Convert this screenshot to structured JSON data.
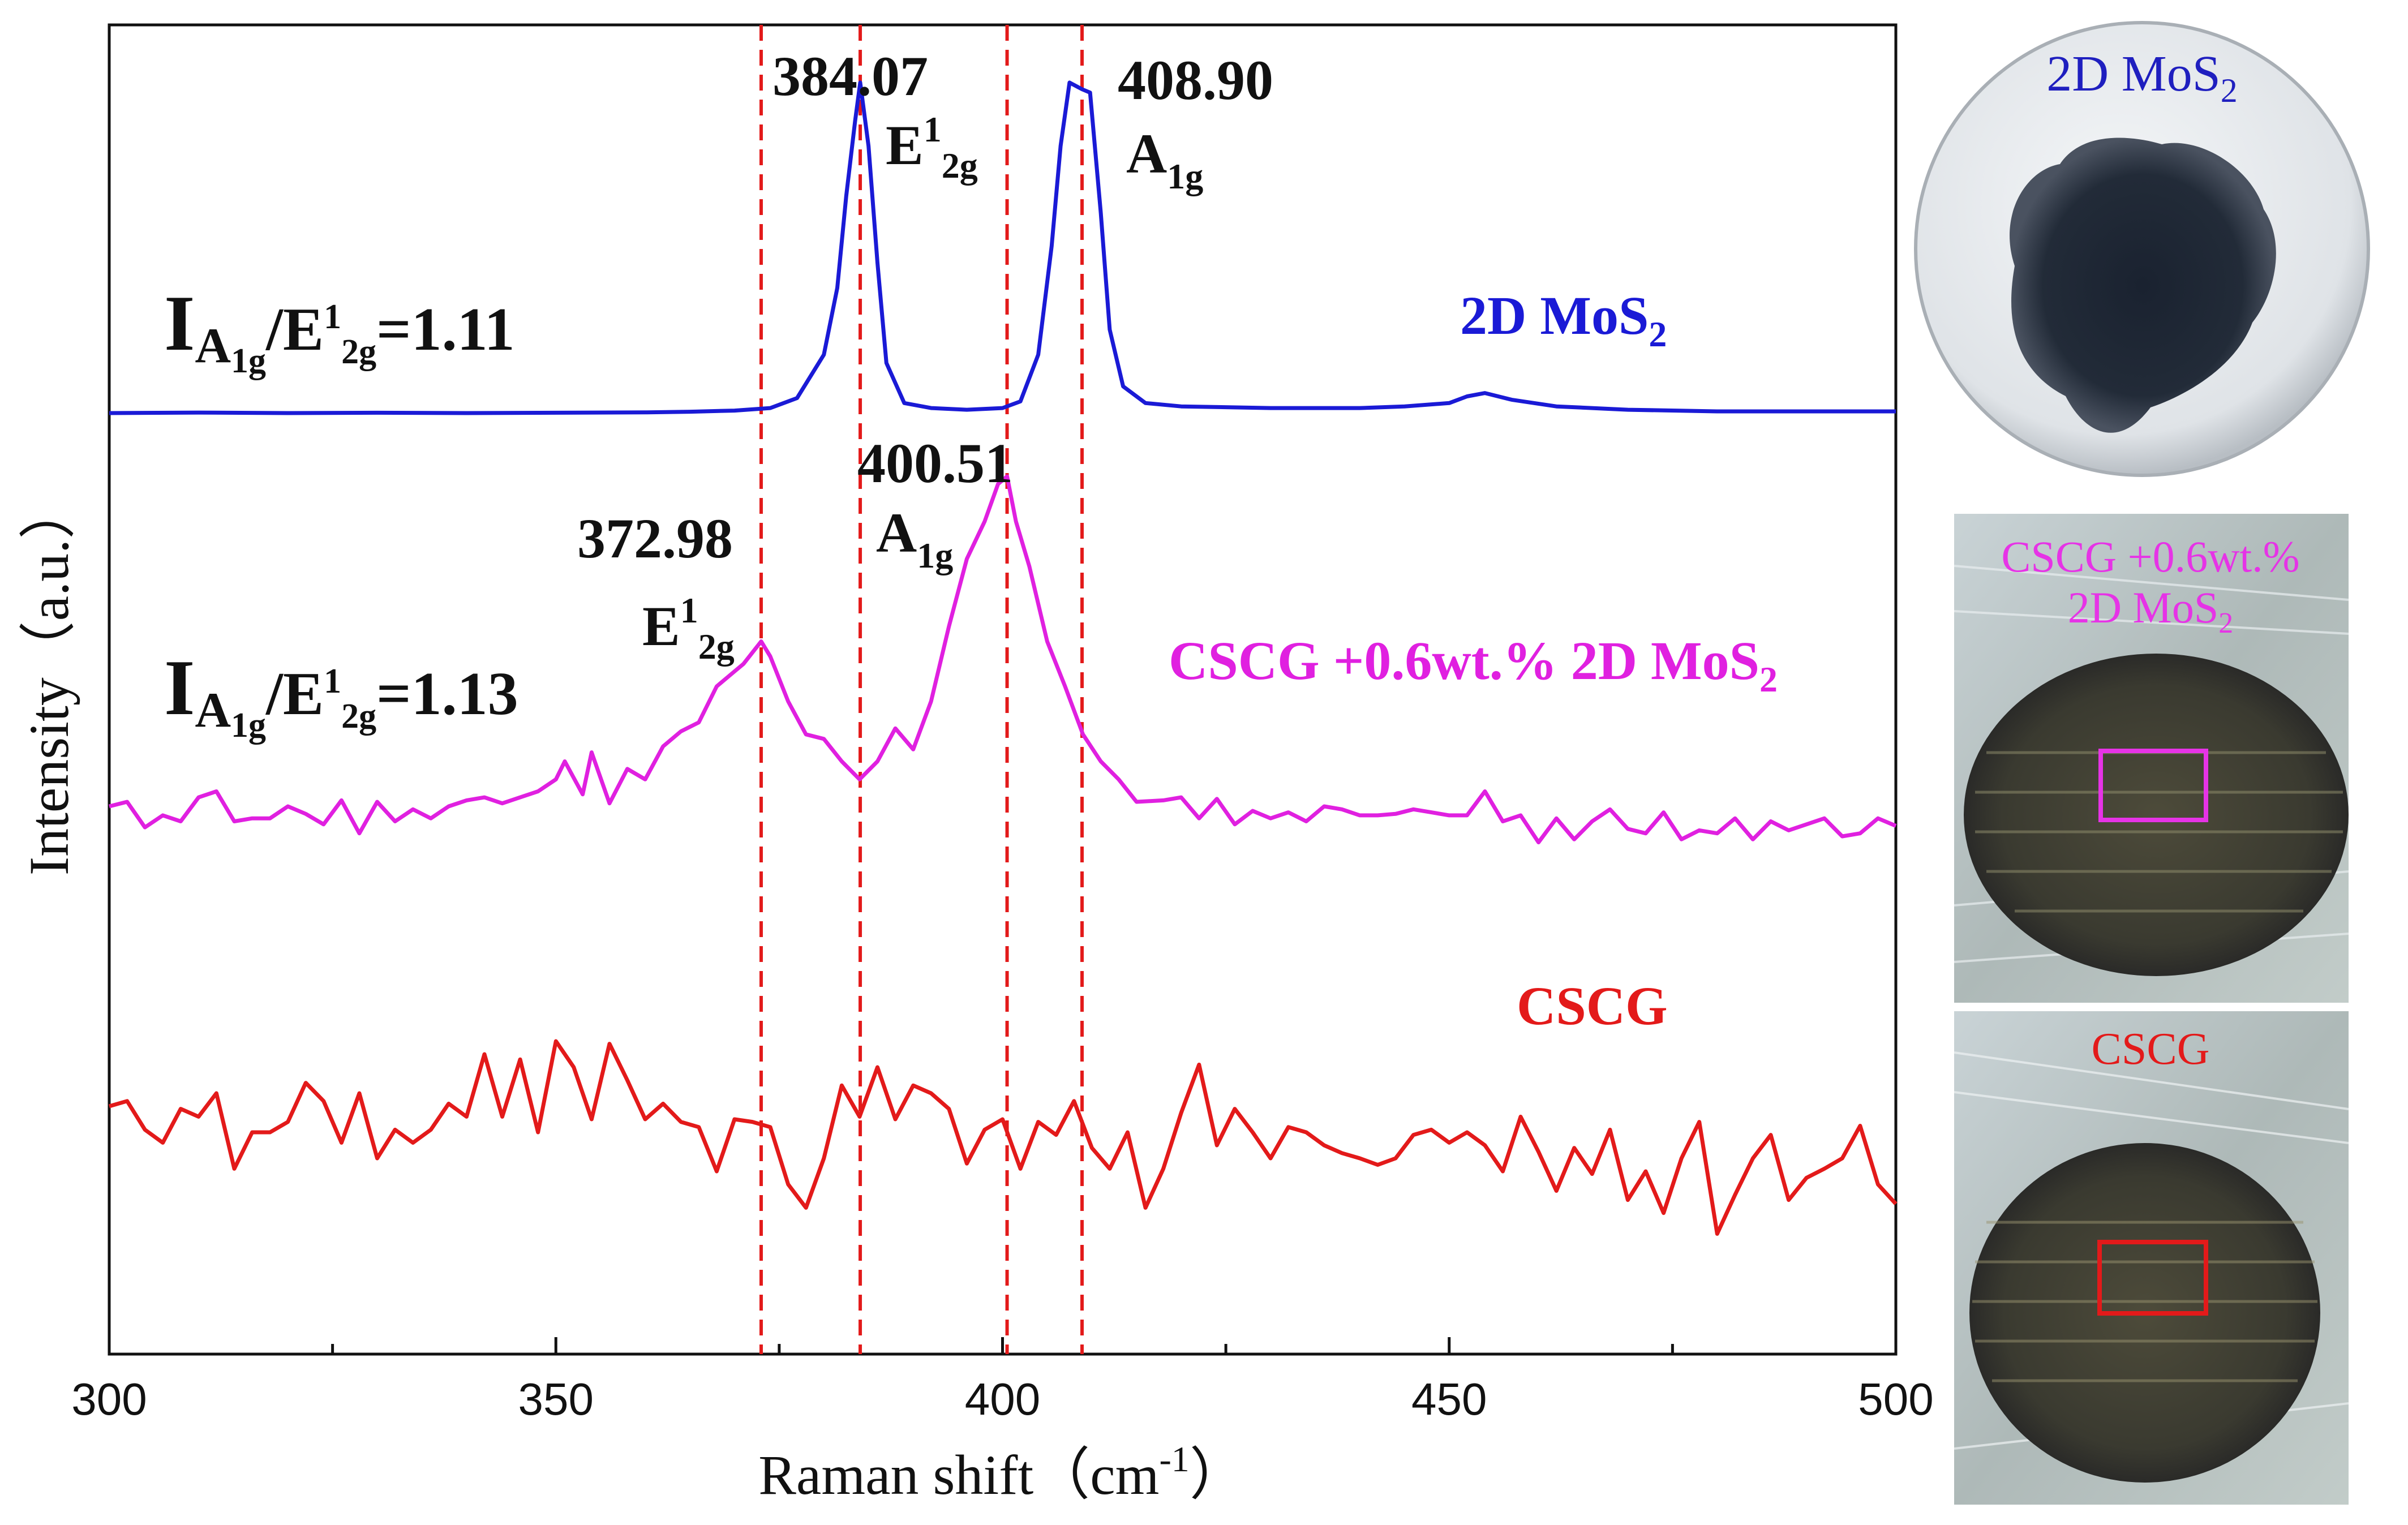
{
  "chart_data": {
    "type": "line",
    "xlabel": "Raman shift（cm",
    "xlabel_unit_sup": "-1",
    "xlabel_close": "）",
    "ylabel": "Intensity（a.u.）",
    "xlim": [
      300,
      500
    ],
    "x_ticks": [
      "300",
      "350",
      "400",
      "450",
      "500"
    ],
    "ref_lines": [
      372.98,
      384.07,
      400.51,
      408.9
    ],
    "series": [
      {
        "name": "2D MoS",
        "name_sub": "2",
        "color": "#1a1ad6",
        "ratio": {
          "main": "I",
          "sub1": "A",
          "sub2": "1g",
          "sep": "/E",
          "sup": "1",
          "sub3": "2g",
          "value": "=1.11"
        },
        "peaks": [
          {
            "x": 384.07,
            "label": "384.07",
            "mode": {
              "base": "E",
              "sup": "1",
              "sub": "2g"
            }
          },
          {
            "x": 408.9,
            "label": "408.90",
            "mode": {
              "base": "A",
              "sup": "",
              "sub": "1g"
            }
          }
        ],
        "points": [
          [
            300,
            0
          ],
          [
            310,
            0.3
          ],
          [
            320,
            0
          ],
          [
            330,
            0.2
          ],
          [
            340,
            0
          ],
          [
            350,
            0.2
          ],
          [
            360,
            0.4
          ],
          [
            365,
            0.8
          ],
          [
            370,
            1.5
          ],
          [
            374,
            3
          ],
          [
            377,
            9
          ],
          [
            380,
            35
          ],
          [
            381.5,
            75
          ],
          [
            382.5,
            130
          ],
          [
            383.5,
            175
          ],
          [
            384.07,
            198
          ],
          [
            385,
            160
          ],
          [
            386,
            90
          ],
          [
            387,
            30
          ],
          [
            389,
            6
          ],
          [
            392,
            3
          ],
          [
            396,
            2
          ],
          [
            400,
            3
          ],
          [
            402,
            7
          ],
          [
            404,
            35
          ],
          [
            405.5,
            100
          ],
          [
            406.5,
            160
          ],
          [
            407.5,
            198
          ],
          [
            408.9,
            194
          ],
          [
            409.8,
            192
          ],
          [
            411,
            120
          ],
          [
            412,
            50
          ],
          [
            413.5,
            16
          ],
          [
            416,
            6
          ],
          [
            420,
            4
          ],
          [
            430,
            3
          ],
          [
            440,
            3
          ],
          [
            445,
            4
          ],
          [
            450,
            6
          ],
          [
            452,
            10
          ],
          [
            454,
            12
          ],
          [
            457,
            8
          ],
          [
            462,
            4
          ],
          [
            470,
            2
          ],
          [
            480,
            1
          ],
          [
            490,
            1
          ],
          [
            500,
            1
          ]
        ]
      },
      {
        "name": "CSCG +0.6wt.% 2D MoS",
        "name_sub": "2",
        "color": "#e020e0",
        "ratio": {
          "main": "I",
          "sub1": "A",
          "sub2": "1g",
          "sep": "/E",
          "sup": "1",
          "sub3": "2g",
          "value": "=1.13"
        },
        "peaks": [
          {
            "x": 372.98,
            "label": "372.98",
            "mode": {
              "base": "E",
              "sup": "1",
              "sub": "2g"
            }
          },
          {
            "x": 400.51,
            "label": "400.51",
            "mode": {
              "base": "A",
              "sup": "",
              "sub": "1g"
            }
          }
        ],
        "points": [
          [
            300,
            0
          ],
          [
            302,
            3
          ],
          [
            304,
            -14
          ],
          [
            306,
            -6
          ],
          [
            308,
            -10
          ],
          [
            310,
            6
          ],
          [
            312,
            10
          ],
          [
            314,
            -10
          ],
          [
            316,
            -8
          ],
          [
            318,
            -8
          ],
          [
            320,
            0
          ],
          [
            322,
            -5
          ],
          [
            324,
            -12
          ],
          [
            326,
            4
          ],
          [
            328,
            -18
          ],
          [
            330,
            3
          ],
          [
            332,
            -10
          ],
          [
            334,
            -2
          ],
          [
            336,
            -8
          ],
          [
            338,
            0
          ],
          [
            340,
            4
          ],
          [
            342,
            6
          ],
          [
            344,
            2
          ],
          [
            346,
            6
          ],
          [
            348,
            10
          ],
          [
            350,
            18
          ],
          [
            351,
            30
          ],
          [
            353,
            8
          ],
          [
            354,
            36
          ],
          [
            356,
            2
          ],
          [
            358,
            25
          ],
          [
            360,
            18
          ],
          [
            362,
            40
          ],
          [
            364,
            50
          ],
          [
            366,
            56
          ],
          [
            368,
            80
          ],
          [
            370,
            90
          ],
          [
            371,
            95
          ],
          [
            372.98,
            110
          ],
          [
            374,
            100
          ],
          [
            376,
            70
          ],
          [
            378,
            48
          ],
          [
            380,
            45
          ],
          [
            382,
            30
          ],
          [
            384,
            18
          ],
          [
            386,
            30
          ],
          [
            388,
            52
          ],
          [
            390,
            38
          ],
          [
            392,
            70
          ],
          [
            394,
            120
          ],
          [
            396,
            165
          ],
          [
            398,
            190
          ],
          [
            399.5,
            215
          ],
          [
            400.51,
            220
          ],
          [
            401.5,
            190
          ],
          [
            403,
            160
          ],
          [
            405,
            110
          ],
          [
            407,
            80
          ],
          [
            409,
            48
          ],
          [
            411,
            30
          ],
          [
            413,
            18
          ],
          [
            415,
            3
          ],
          [
            418,
            4
          ],
          [
            420,
            6
          ],
          [
            422,
            -8
          ],
          [
            424,
            5
          ],
          [
            426,
            -12
          ],
          [
            428,
            -3
          ],
          [
            430,
            -8
          ],
          [
            432,
            -4
          ],
          [
            434,
            -10
          ],
          [
            436,
            0
          ],
          [
            438,
            -2
          ],
          [
            440,
            -6
          ],
          [
            442,
            -6
          ],
          [
            444,
            -5
          ],
          [
            446,
            -2
          ],
          [
            448,
            -4
          ],
          [
            450,
            -6
          ],
          [
            452,
            -6
          ],
          [
            454,
            10
          ],
          [
            456,
            -10
          ],
          [
            458,
            -6
          ],
          [
            460,
            -24
          ],
          [
            462,
            -8
          ],
          [
            464,
            -22
          ],
          [
            466,
            -10
          ],
          [
            468,
            -2
          ],
          [
            470,
            -15
          ],
          [
            472,
            -18
          ],
          [
            474,
            -4
          ],
          [
            476,
            -22
          ],
          [
            478,
            -16
          ],
          [
            480,
            -18
          ],
          [
            482,
            -8
          ],
          [
            484,
            -22
          ],
          [
            486,
            -10
          ],
          [
            488,
            -16
          ],
          [
            490,
            -12
          ],
          [
            492,
            -8
          ],
          [
            494,
            -20
          ],
          [
            496,
            -18
          ],
          [
            498,
            -8
          ],
          [
            500,
            -13
          ]
        ]
      },
      {
        "name": "CSCG",
        "name_sub": "",
        "color": "#e31a1a",
        "ratio": null,
        "peaks": [],
        "points": [
          [
            300,
            0
          ],
          [
            302,
            4
          ],
          [
            304,
            -18
          ],
          [
            306,
            -28
          ],
          [
            308,
            -2
          ],
          [
            310,
            -8
          ],
          [
            312,
            10
          ],
          [
            314,
            -48
          ],
          [
            316,
            -20
          ],
          [
            318,
            -20
          ],
          [
            320,
            -12
          ],
          [
            322,
            18
          ],
          [
            324,
            4
          ],
          [
            326,
            -28
          ],
          [
            328,
            10
          ],
          [
            330,
            -40
          ],
          [
            332,
            -18
          ],
          [
            334,
            -28
          ],
          [
            336,
            -18
          ],
          [
            338,
            2
          ],
          [
            340,
            -8
          ],
          [
            342,
            40
          ],
          [
            344,
            -8
          ],
          [
            346,
            36
          ],
          [
            348,
            -20
          ],
          [
            350,
            50
          ],
          [
            352,
            30
          ],
          [
            354,
            -10
          ],
          [
            356,
            48
          ],
          [
            358,
            20
          ],
          [
            360,
            -10
          ],
          [
            362,
            2
          ],
          [
            364,
            -12
          ],
          [
            366,
            -16
          ],
          [
            368,
            -50
          ],
          [
            370,
            -10
          ],
          [
            372,
            -12
          ],
          [
            374,
            -16
          ],
          [
            376,
            -60
          ],
          [
            378,
            -78
          ],
          [
            380,
            -40
          ],
          [
            382,
            16
          ],
          [
            384,
            -8
          ],
          [
            386,
            30
          ],
          [
            388,
            -10
          ],
          [
            390,
            16
          ],
          [
            392,
            10
          ],
          [
            394,
            -2
          ],
          [
            396,
            -44
          ],
          [
            398,
            -18
          ],
          [
            400,
            -10
          ],
          [
            402,
            -48
          ],
          [
            404,
            -12
          ],
          [
            406,
            -22
          ],
          [
            408,
            4
          ],
          [
            410,
            -32
          ],
          [
            412,
            -48
          ],
          [
            414,
            -20
          ],
          [
            416,
            -78
          ],
          [
            418,
            -48
          ],
          [
            420,
            -5
          ],
          [
            422,
            32
          ],
          [
            424,
            -30
          ],
          [
            426,
            -2
          ],
          [
            428,
            -20
          ],
          [
            430,
            -40
          ],
          [
            432,
            -16
          ],
          [
            434,
            -20
          ],
          [
            436,
            -30
          ],
          [
            438,
            -36
          ],
          [
            440,
            -40
          ],
          [
            442,
            -45
          ],
          [
            444,
            -40
          ],
          [
            446,
            -22
          ],
          [
            448,
            -18
          ],
          [
            450,
            -28
          ],
          [
            452,
            -20
          ],
          [
            454,
            -30
          ],
          [
            456,
            -50
          ],
          [
            458,
            -8
          ],
          [
            460,
            -35
          ],
          [
            462,
            -65
          ],
          [
            464,
            -32
          ],
          [
            466,
            -52
          ],
          [
            468,
            -18
          ],
          [
            470,
            -72
          ],
          [
            472,
            -50
          ],
          [
            474,
            -82
          ],
          [
            476,
            -40
          ],
          [
            478,
            -12
          ],
          [
            480,
            -98
          ],
          [
            482,
            -68
          ],
          [
            484,
            -40
          ],
          [
            486,
            -22
          ],
          [
            488,
            -72
          ],
          [
            490,
            -55
          ],
          [
            492,
            -48
          ],
          [
            494,
            -40
          ],
          [
            496,
            -15
          ],
          [
            498,
            -60
          ],
          [
            500,
            -75
          ]
        ]
      }
    ],
    "insets": [
      {
        "title": "2D MoS",
        "title_sub": "2",
        "title_color": "#1f1fbf"
      },
      {
        "title_line1": "CSCG +0.6wt.%",
        "title_line2": "2D MoS",
        "title_sub": "2",
        "title_color": "#e633e6"
      },
      {
        "title": "CSCG",
        "title_color": "#e31a1a"
      }
    ]
  }
}
